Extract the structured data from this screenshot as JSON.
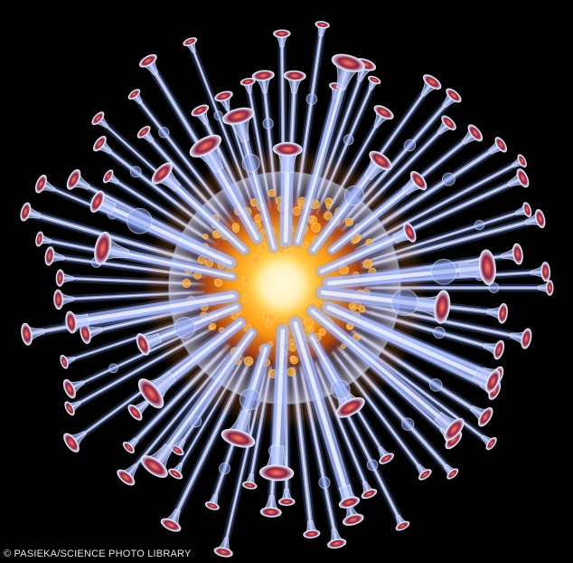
{
  "image": {
    "credit": "© PASIEKA/SCIENCE PHOTO LIBRARY",
    "subject_icon": "virus-particle-illustration"
  },
  "palette": {
    "background": "#000000",
    "spike_glass": "#9fb6ff",
    "spike_glow": "#dfe8ff",
    "spike_tip": "#c0405a",
    "core_hot": "#fff6c8",
    "core_mid": "#ffb020",
    "core_edge": "#c34a10",
    "credit_text": "#e6e6e6"
  }
}
